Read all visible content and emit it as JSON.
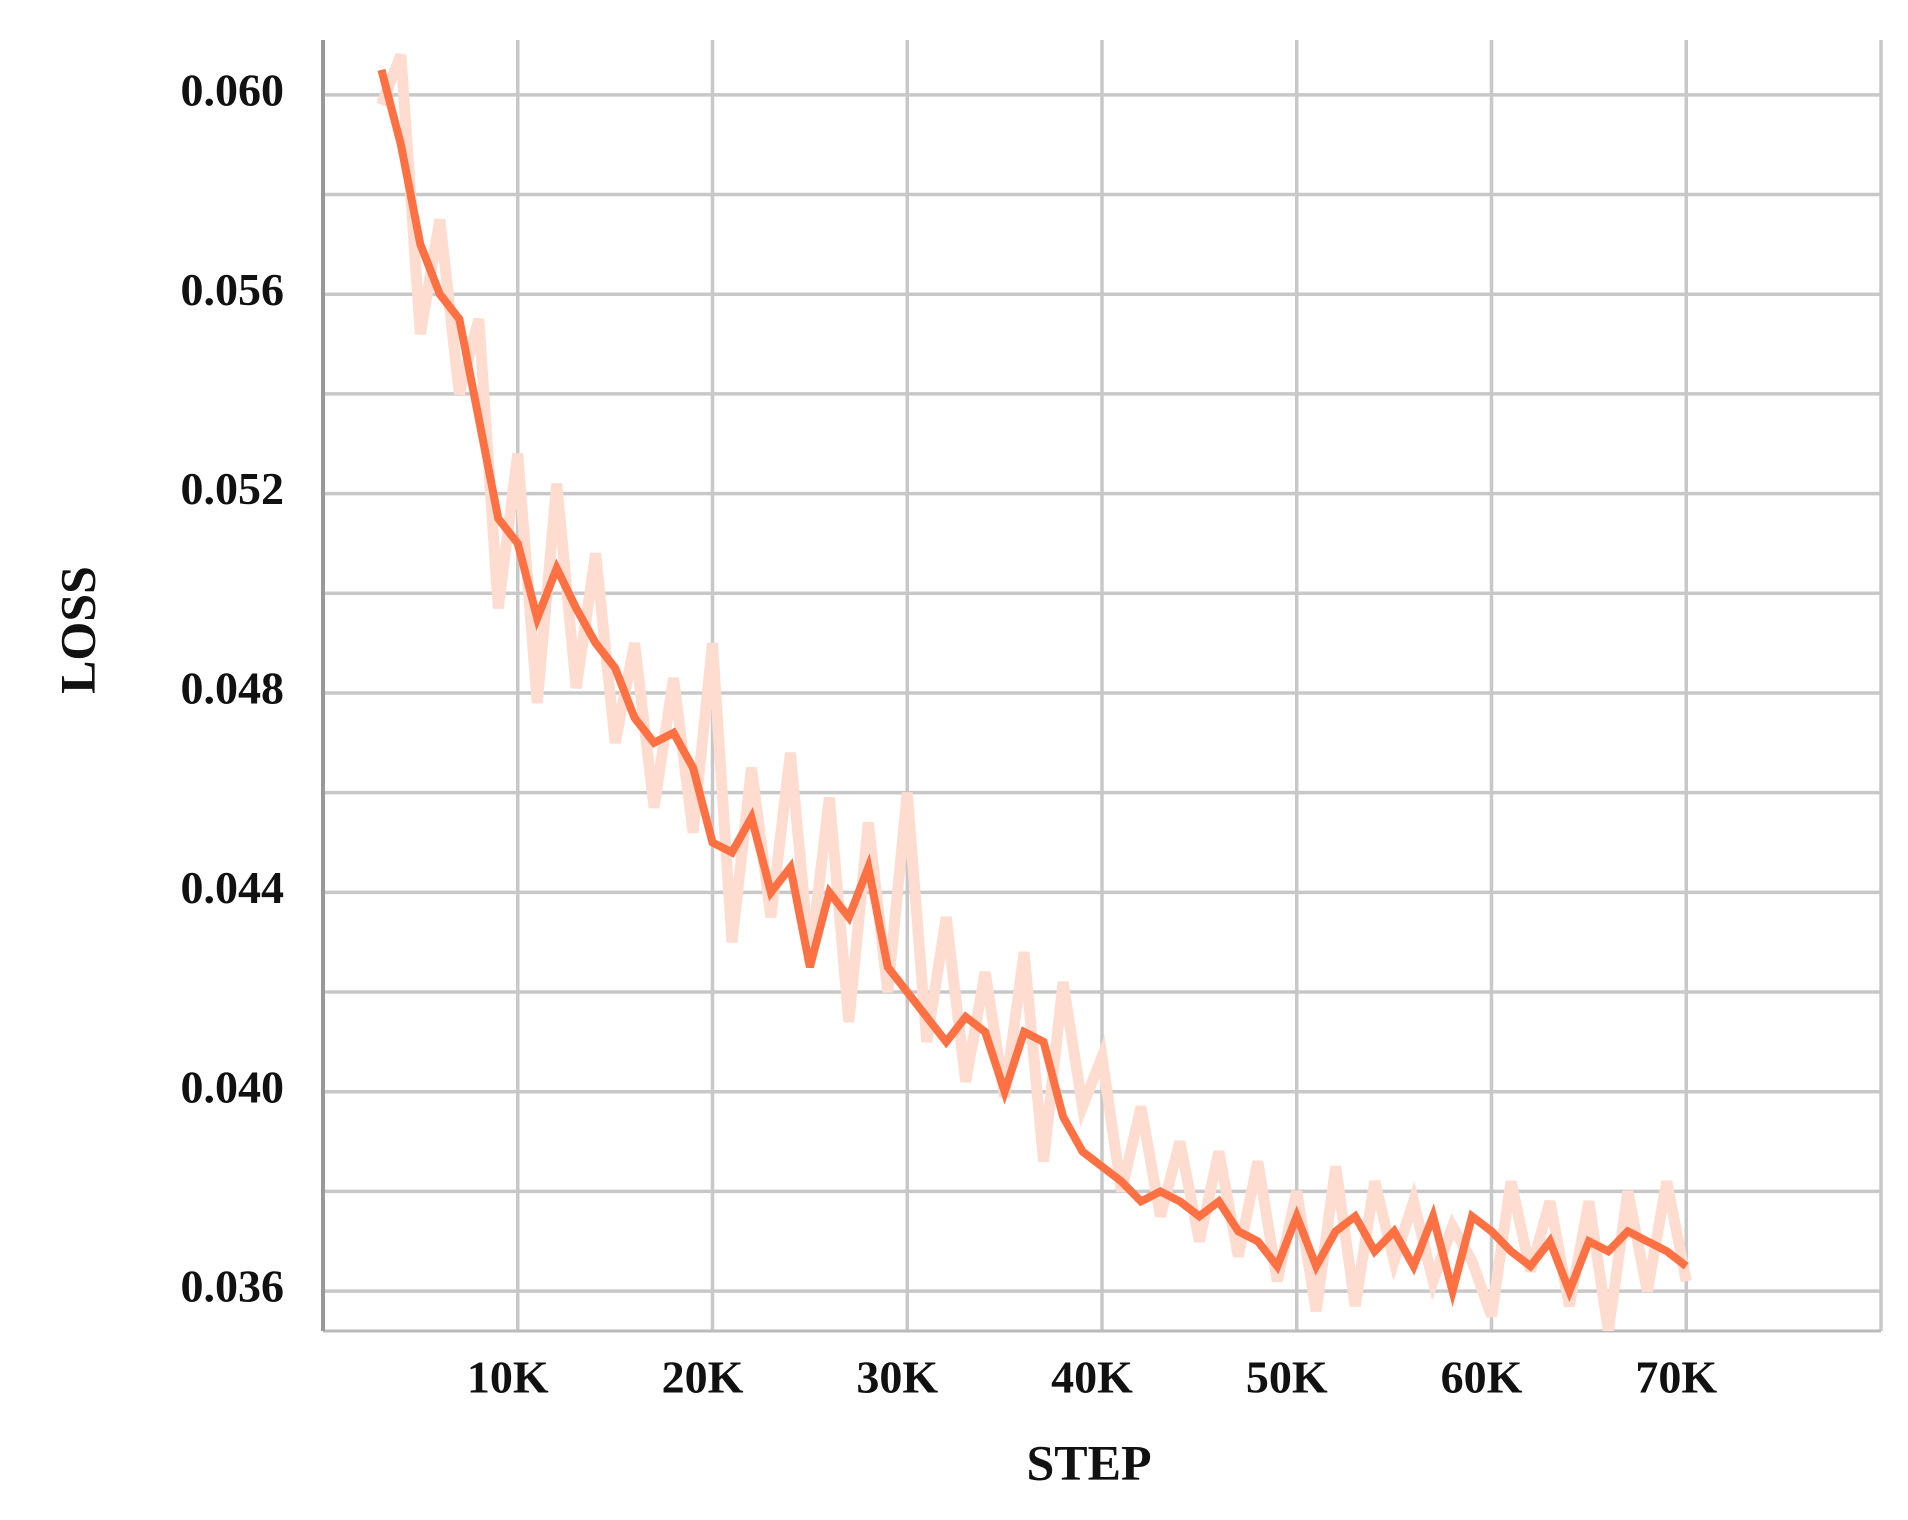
{
  "chart_data": {
    "type": "line",
    "xlabel": "STEP",
    "ylabel": "LOSS",
    "x": [
      3000,
      4000,
      5000,
      6000,
      7000,
      8000,
      9000,
      10000,
      11000,
      12000,
      13000,
      14000,
      15000,
      16000,
      17000,
      18000,
      19000,
      20000,
      21000,
      22000,
      23000,
      24000,
      25000,
      26000,
      27000,
      28000,
      29000,
      30000,
      31000,
      32000,
      33000,
      34000,
      35000,
      36000,
      37000,
      38000,
      39000,
      40000,
      41000,
      42000,
      43000,
      44000,
      45000,
      46000,
      47000,
      48000,
      49000,
      50000,
      51000,
      52000,
      53000,
      54000,
      55000,
      56000,
      57000,
      58000,
      59000,
      60000,
      61000,
      62000,
      63000,
      64000,
      65000,
      66000,
      67000,
      68000,
      69000,
      70000
    ],
    "series": [
      {
        "color": "#ffdcd0",
        "width": 11,
        "values": [
          0.0598,
          0.0608,
          0.0552,
          0.0575,
          0.054,
          0.0555,
          0.0497,
          0.0528,
          0.0478,
          0.0522,
          0.0481,
          0.0508,
          0.047,
          0.049,
          0.0457,
          0.0483,
          0.0452,
          0.049,
          0.043,
          0.0465,
          0.0435,
          0.0468,
          0.0426,
          0.0459,
          0.0414,
          0.0454,
          0.042,
          0.046,
          0.041,
          0.0435,
          0.0402,
          0.0424,
          0.0399,
          0.0428,
          0.0386,
          0.0422,
          0.0397,
          0.0407,
          0.038,
          0.0397,
          0.0375,
          0.039,
          0.037,
          0.0388,
          0.0367,
          0.0386,
          0.0362,
          0.038,
          0.0356,
          0.0385,
          0.0357,
          0.0382,
          0.0366,
          0.0378,
          0.0362,
          0.0373,
          0.0366,
          0.0355,
          0.0382,
          0.0364,
          0.0378,
          0.0357,
          0.0378,
          0.0352,
          0.038,
          0.036,
          0.0382,
          0.0362
        ]
      },
      {
        "color": "#ff7043",
        "width": 8,
        "values": [
          0.0605,
          0.059,
          0.057,
          0.056,
          0.0555,
          0.0535,
          0.0515,
          0.051,
          0.0495,
          0.0505,
          0.0497,
          0.049,
          0.0485,
          0.0475,
          0.047,
          0.0472,
          0.0465,
          0.045,
          0.0448,
          0.0455,
          0.044,
          0.0445,
          0.0425,
          0.044,
          0.0435,
          0.0445,
          0.0425,
          0.042,
          0.0415,
          0.041,
          0.0415,
          0.0412,
          0.04,
          0.0412,
          0.041,
          0.0395,
          0.0388,
          0.0385,
          0.0382,
          0.0378,
          0.038,
          0.0378,
          0.0375,
          0.0378,
          0.0372,
          0.037,
          0.0365,
          0.0375,
          0.0365,
          0.0372,
          0.0375,
          0.0368,
          0.0372,
          0.0365,
          0.0375,
          0.036,
          0.0375,
          0.0372,
          0.0368,
          0.0365,
          0.037,
          0.036,
          0.037,
          0.0368,
          0.0372,
          0.037,
          0.0368,
          0.0365
        ]
      }
    ],
    "xlim": [
      0,
      80000
    ],
    "xticks": [
      {
        "value": 10000,
        "label": "10K"
      },
      {
        "value": 20000,
        "label": "20K"
      },
      {
        "value": 30000,
        "label": "30K"
      },
      {
        "value": 40000,
        "label": "40K"
      },
      {
        "value": 50000,
        "label": "50K"
      },
      {
        "value": 60000,
        "label": "60K"
      },
      {
        "value": 70000,
        "label": "70K"
      }
    ],
    "ylim": [
      0.0352,
      0.0611
    ],
    "yticks": [
      {
        "value": 0.036,
        "label": "0.036"
      },
      {
        "value": 0.04,
        "label": "0.040"
      },
      {
        "value": 0.044,
        "label": "0.044"
      },
      {
        "value": 0.048,
        "label": "0.048"
      },
      {
        "value": 0.052,
        "label": "0.052"
      },
      {
        "value": 0.056,
        "label": "0.056"
      },
      {
        "value": 0.06,
        "label": "0.060"
      }
    ],
    "minor_yticks": [
      0.038,
      0.042,
      0.046,
      0.05,
      0.054,
      0.058
    ],
    "minor_xticks": [
      80000
    ],
    "grid": true
  }
}
